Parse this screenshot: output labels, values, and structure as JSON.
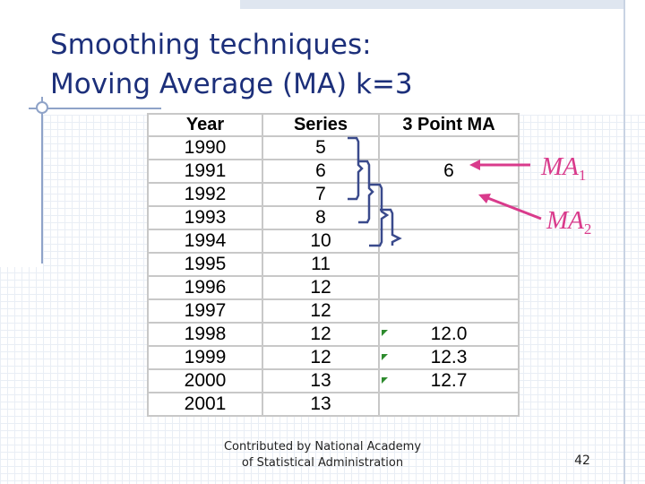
{
  "slide": {
    "title_line1": "Smoothing techniques:",
    "title_line2": "Moving Average (MA) k=3",
    "footer_line1": "Contributed by National Academy",
    "footer_line2": "of Statistical Administration",
    "page_number": "42"
  },
  "table": {
    "headers": [
      "Year",
      "Series",
      "3 Point MA"
    ],
    "rows": [
      [
        "1990",
        "5",
        ""
      ],
      [
        "1991",
        "6",
        "6"
      ],
      [
        "1992",
        "7",
        ""
      ],
      [
        "1993",
        "8",
        ""
      ],
      [
        "1994",
        "10",
        ""
      ],
      [
        "1995",
        "11",
        ""
      ],
      [
        "1996",
        "12",
        ""
      ],
      [
        "1997",
        "12",
        ""
      ],
      [
        "1998",
        "12",
        "12.0"
      ],
      [
        "1999",
        "12",
        "12.3"
      ],
      [
        "2000",
        "13",
        "12.7"
      ],
      [
        "2001",
        "13",
        ""
      ]
    ]
  },
  "annotations": {
    "ma1": {
      "base": "MA",
      "sub": "1"
    },
    "ma2": {
      "base": "MA",
      "sub": "2"
    }
  },
  "colors": {
    "title": "#1c2f7a",
    "annotation": "#d93b8c",
    "bracket": "#3a4a8c",
    "marker": "#2e8b2e"
  }
}
